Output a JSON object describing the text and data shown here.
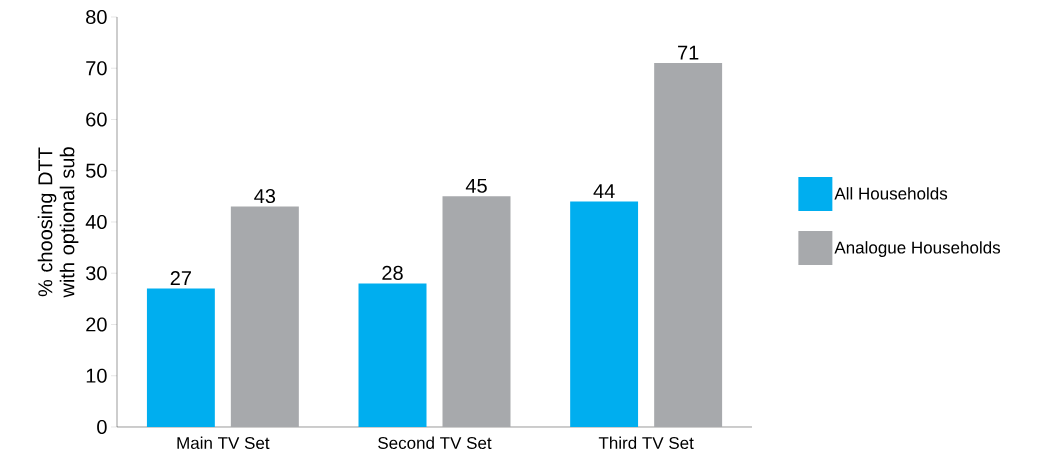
{
  "chart_data": {
    "type": "bar",
    "ylabel": "% choosing DTT with optional sub",
    "categories": [
      "Main TV Set",
      "Second TV Set",
      "Third TV Set"
    ],
    "series": [
      {
        "name": "All Households",
        "color": "#00aeef",
        "values": [
          27,
          28,
          44
        ]
      },
      {
        "name": "Analogue Households",
        "color": "#a7a9ac",
        "values": [
          43,
          45,
          71
        ]
      }
    ],
    "ylim": [
      0,
      80
    ],
    "yticks": [
      0,
      10,
      20,
      30,
      40,
      50,
      60,
      70,
      80
    ],
    "data_labels": true,
    "legend": "right"
  }
}
